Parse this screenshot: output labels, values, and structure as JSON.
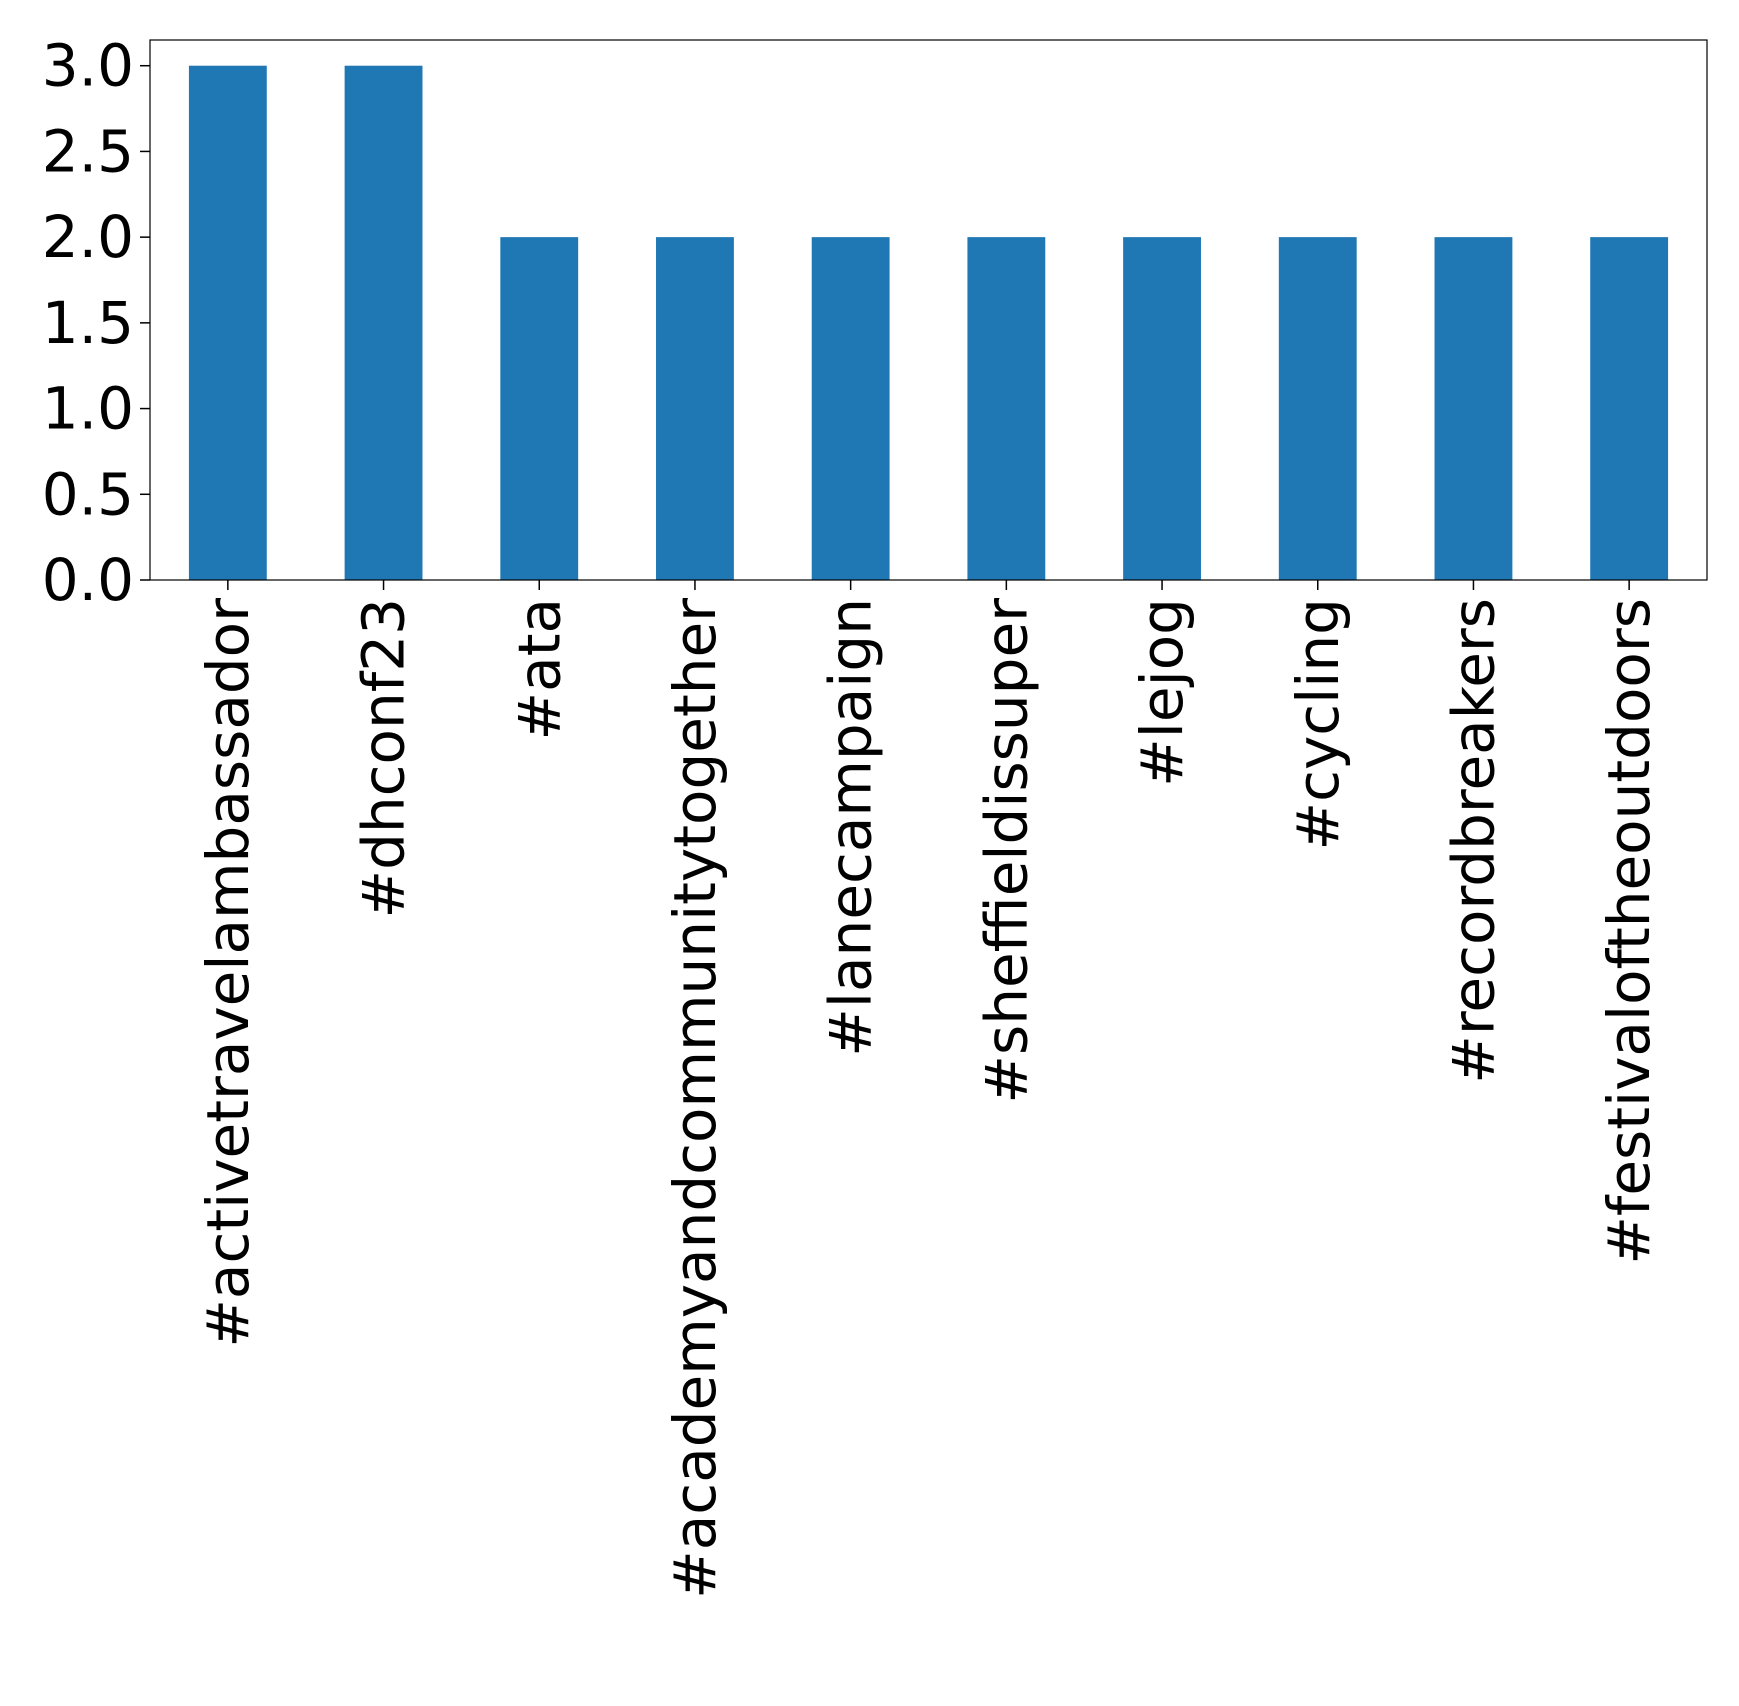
{
  "chart_data": {
    "type": "bar",
    "title": "",
    "xlabel": "",
    "ylabel": "",
    "categories": [
      "#activetravelambassador",
      "#dhconf23",
      "#ata",
      "#academyandcommunitytogether",
      "#lanecampaign",
      "#sheffieldissuper",
      "#lejog",
      "#cycling",
      "#recordbreakers",
      "#festivaloftheoutdoors"
    ],
    "values": [
      3,
      3,
      2,
      2,
      2,
      2,
      2,
      2,
      2,
      2
    ],
    "ylim": [
      0,
      3.15
    ],
    "yticks": [
      "0.0",
      "0.5",
      "1.0",
      "1.5",
      "2.0",
      "2.5",
      "3.0"
    ],
    "bar_color": "#1f77b4",
    "grid": false,
    "legend": "none"
  }
}
